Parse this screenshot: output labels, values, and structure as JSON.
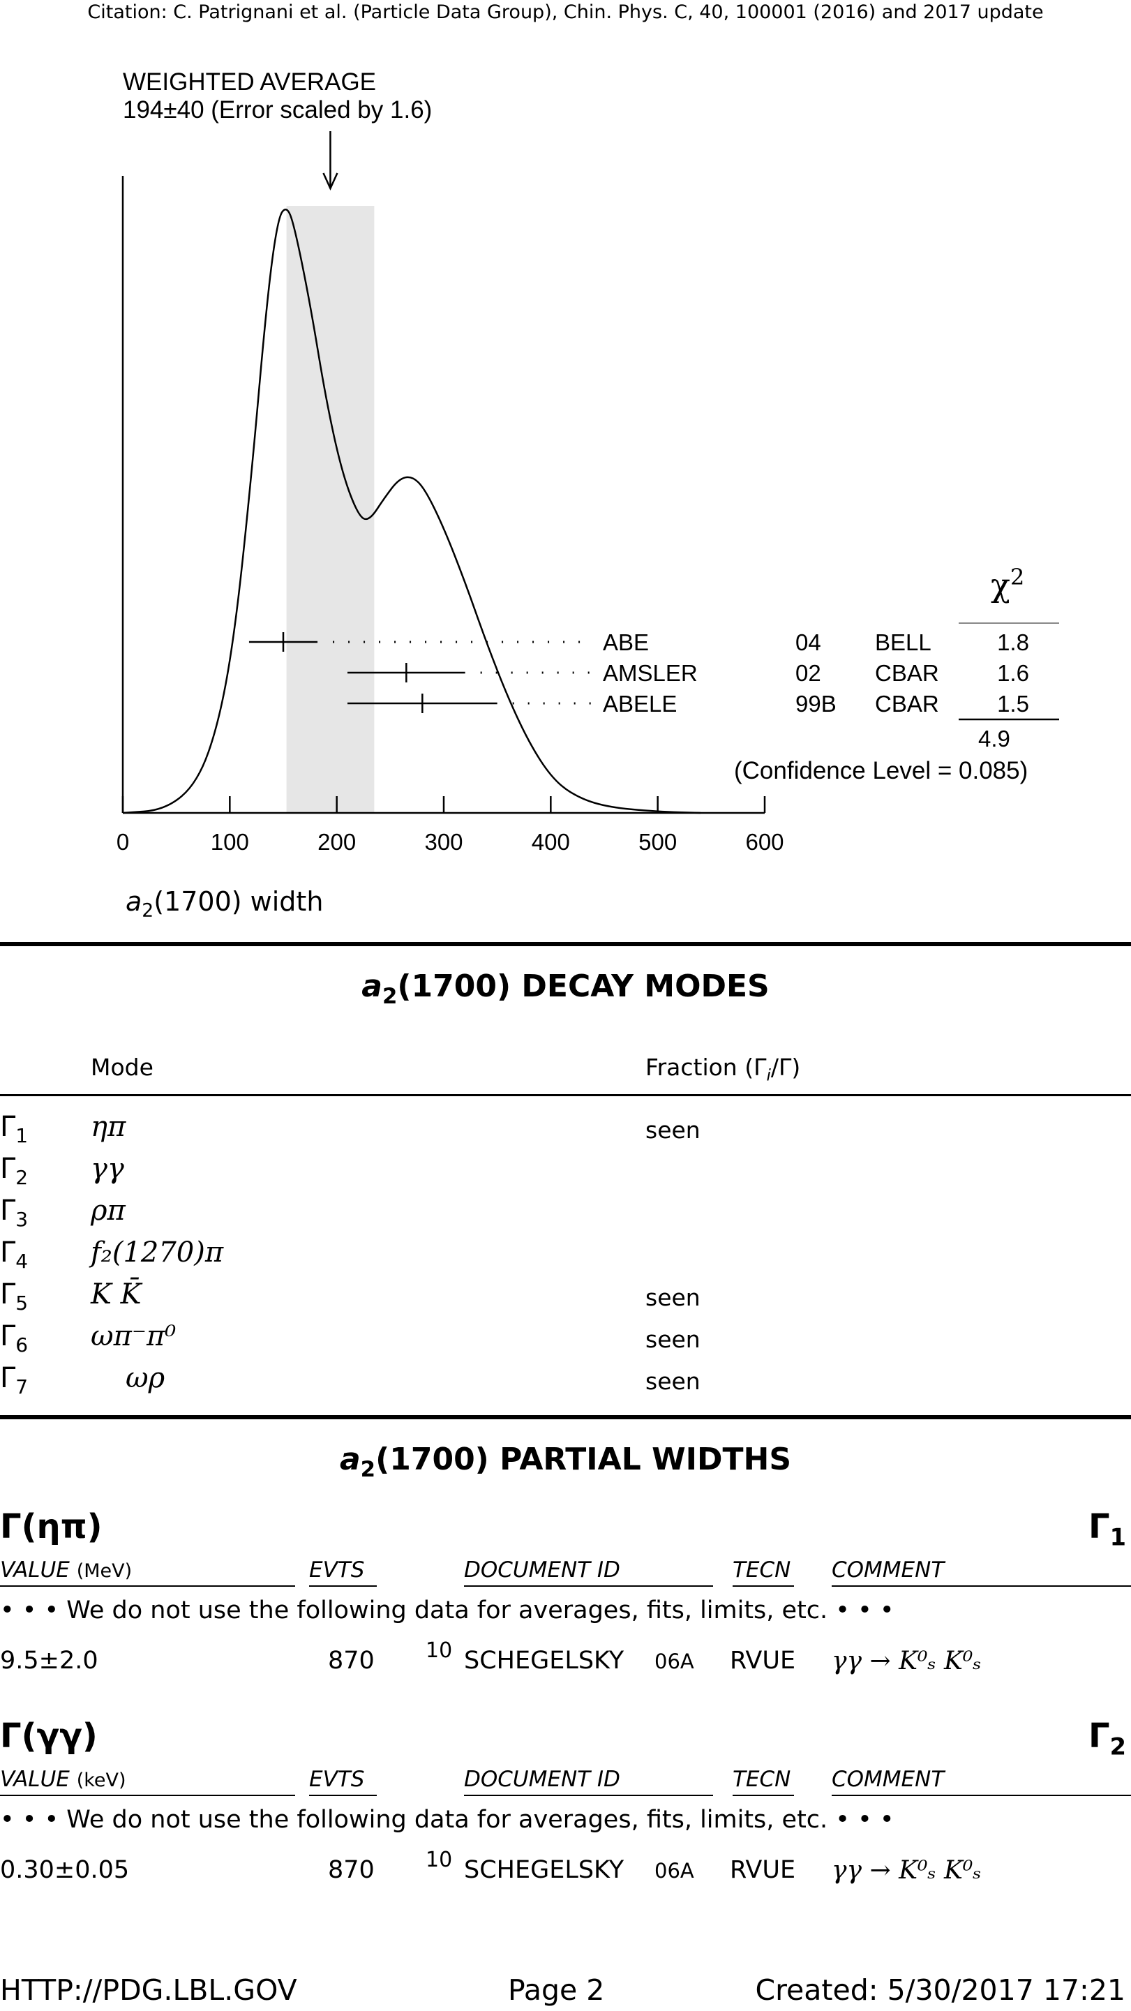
{
  "citation": "Citation: C. Patrignani et al. (Particle Data Group), Chin. Phys. C, 40, 100001 (2016) and 2017 update",
  "ideogram": {
    "avg_title": "WEIGHTED AVERAGE",
    "avg_value": "194±40 (Error scaled by 1.6)",
    "xlabel_main": "a",
    "xlabel_sub": "2",
    "xlabel_rest": "(1700) width",
    "chi2_header": "χ",
    "chi2_sup": "2",
    "chi2_total": "4.9",
    "confidence": "(Confidence Level = 0.085)"
  },
  "chart_data": {
    "type": "scatter",
    "title": "WEIGHTED AVERAGE 194±40 (Error scaled by 1.6)",
    "xlabel": "a2(1700) width",
    "xlim": [
      0,
      600
    ],
    "xticks": [
      0,
      100,
      200,
      300,
      400,
      500,
      600
    ],
    "weighted_average": {
      "value": 194,
      "error": 40,
      "scale_factor": 1.6
    },
    "band": [
      153,
      235
    ],
    "points": [
      {
        "author": "ABE",
        "year": "04",
        "tecn": "BELL",
        "value": 150,
        "low": 118,
        "high": 182,
        "chi2": "1.8"
      },
      {
        "author": "AMSLER",
        "year": "02",
        "tecn": "CBAR",
        "value": 265,
        "low": 210,
        "high": 320,
        "chi2": "1.6"
      },
      {
        "author": "ABELE",
        "year": "99B",
        "tecn": "CBAR",
        "value": 280,
        "low": 210,
        "high": 350,
        "chi2": "1.5"
      }
    ],
    "curve": [
      [
        0,
        0
      ],
      [
        40,
        0.005
      ],
      [
        70,
        0.05
      ],
      [
        90,
        0.15
      ],
      [
        105,
        0.3
      ],
      [
        120,
        0.55
      ],
      [
        135,
        0.85
      ],
      [
        145,
        0.98
      ],
      [
        153,
        1.0
      ],
      [
        160,
        0.97
      ],
      [
        175,
        0.84
      ],
      [
        190,
        0.68
      ],
      [
        205,
        0.56
      ],
      [
        220,
        0.49
      ],
      [
        230,
        0.48
      ],
      [
        245,
        0.52
      ],
      [
        258,
        0.55
      ],
      [
        270,
        0.555
      ],
      [
        282,
        0.535
      ],
      [
        300,
        0.47
      ],
      [
        320,
        0.38
      ],
      [
        340,
        0.28
      ],
      [
        360,
        0.19
      ],
      [
        380,
        0.115
      ],
      [
        400,
        0.06
      ],
      [
        420,
        0.03
      ],
      [
        450,
        0.01
      ],
      [
        500,
        0.002
      ],
      [
        540,
        0
      ]
    ]
  },
  "decay_modes": {
    "title_pre": "a",
    "title_sub": "2",
    "title_rest": "(1700) DECAY MODES",
    "col_mode": "Mode",
    "col_fraction": "Fraction (Γ",
    "col_fraction_sub": "i",
    "col_fraction_end": "/Γ)",
    "rows": [
      {
        "g": "Γ",
        "i": "1",
        "mode": "ηπ",
        "fraction": "seen"
      },
      {
        "g": "Γ",
        "i": "2",
        "mode": "γγ",
        "fraction": ""
      },
      {
        "g": "Γ",
        "i": "3",
        "mode": "ρπ",
        "fraction": ""
      },
      {
        "g": "Γ",
        "i": "4",
        "mode": "f₂(1270)π",
        "fraction": ""
      },
      {
        "g": "Γ",
        "i": "5",
        "mode": "K K̄",
        "fraction": "seen"
      },
      {
        "g": "Γ",
        "i": "6",
        "mode": "ωπ⁻π⁰",
        "fraction": "seen"
      },
      {
        "g": "Γ",
        "i": "7",
        "mode": "ωρ",
        "fraction": "seen"
      }
    ]
  },
  "partial_widths": {
    "title_pre": "a",
    "title_sub": "2",
    "title_rest": "(1700) PARTIAL WIDTHS",
    "sections": [
      {
        "name": "Γ(ηπ)",
        "gamma": "Γ",
        "gamma_sub": "1",
        "value_label": "VALUE",
        "unit": "(MeV)",
        "evts": "EVTS",
        "doc": "DOCUMENT ID",
        "tecn": "TECN",
        "comment": "COMMENT",
        "note": "• • • We do not use the following data for averages, fits, limits, etc. • • •",
        "value": "9.5±2.0",
        "n": "870",
        "ref": "10",
        "docid": "SCHEGELSKY",
        "docyr": "06A",
        "tecnval": "RVUE",
        "commentval": "γγ → K⁰ₛ K⁰ₛ"
      },
      {
        "name": "Γ(γγ)",
        "gamma": "Γ",
        "gamma_sub": "2",
        "value_label": "VALUE",
        "unit": "(keV)",
        "evts": "EVTS",
        "doc": "DOCUMENT ID",
        "tecn": "TECN",
        "comment": "COMMENT",
        "note": "• • • We do not use the following data for averages, fits, limits, etc. • • •",
        "value": "0.30±0.05",
        "n": "870",
        "ref": "10",
        "docid": "SCHEGELSKY",
        "docyr": "06A",
        "tecnval": "RVUE",
        "commentval": "γγ → K⁰ₛ K⁰ₛ"
      }
    ]
  },
  "footer": {
    "left": "HTTP://PDG.LBL.GOV",
    "center": "Page 2",
    "right": "Created: 5/30/2017 17:21"
  }
}
